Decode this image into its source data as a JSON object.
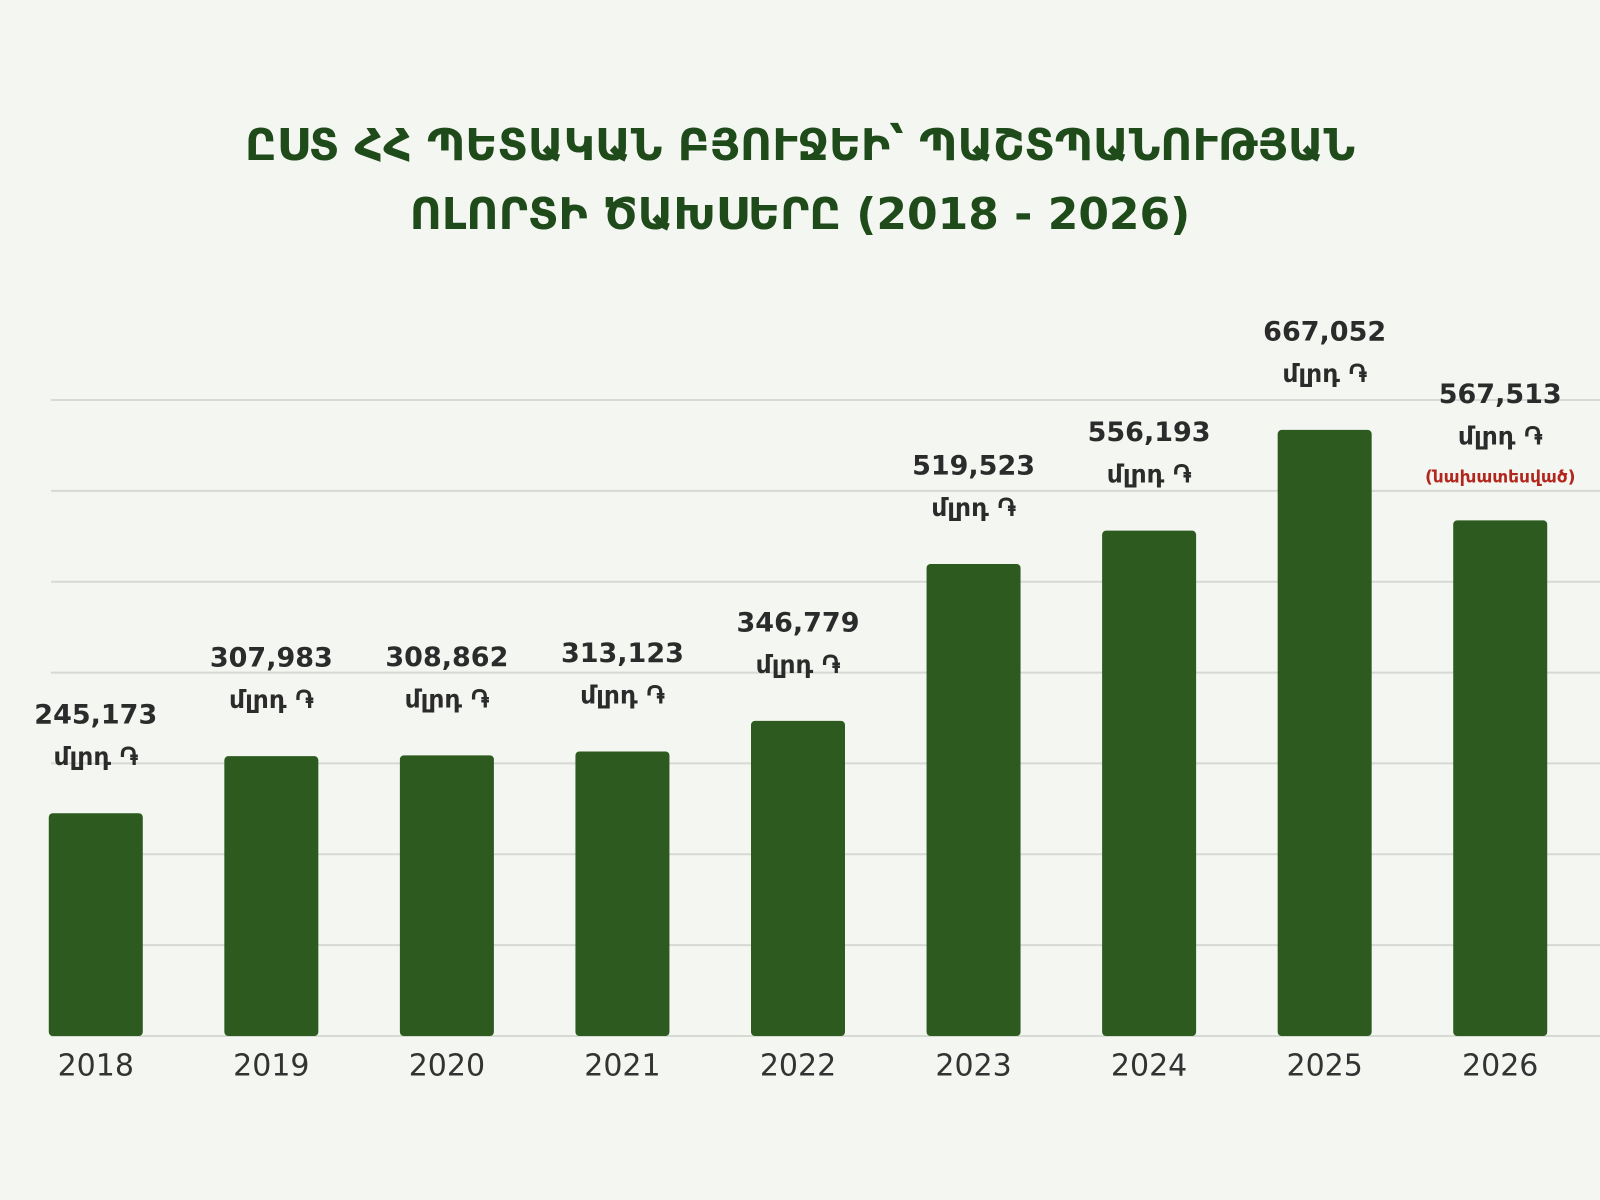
{
  "chart_data": {
    "type": "bar",
    "title": [
      "ԸՍՏ ՀՀ ՊԵՏԱԿԱՆ ԲՅՈՒՋԵԻ՝ ՊԱՇՏՊԱՆՈՒԹՅԱՆ",
      "ՈԼՈՐՏԻ ԾԱԽՍԵՐԸ (2018 - 2026)"
    ],
    "categories": [
      "2018",
      "2019",
      "2020",
      "2021",
      "2022",
      "2023",
      "2024",
      "2025",
      "2026"
    ],
    "values": [
      245173,
      307983,
      308862,
      313123,
      346779,
      519523,
      556193,
      667052,
      567513
    ],
    "value_labels": [
      "245,173",
      "307,983",
      "308,862",
      "313,123",
      "346,779",
      "519,523",
      "556,193",
      "667,052",
      "567,513"
    ],
    "unit": "մլրդ ֏",
    "notes": [
      null,
      null,
      null,
      null,
      null,
      null,
      null,
      null,
      "(նախատեսված)"
    ],
    "note_color": "#b3261e",
    "color": "#2d5a1e",
    "ylim": [
      0,
      700000
    ],
    "yticks": [
      0,
      100000,
      200000,
      300000,
      400000,
      500000,
      600000,
      700000
    ],
    "grid": true
  }
}
